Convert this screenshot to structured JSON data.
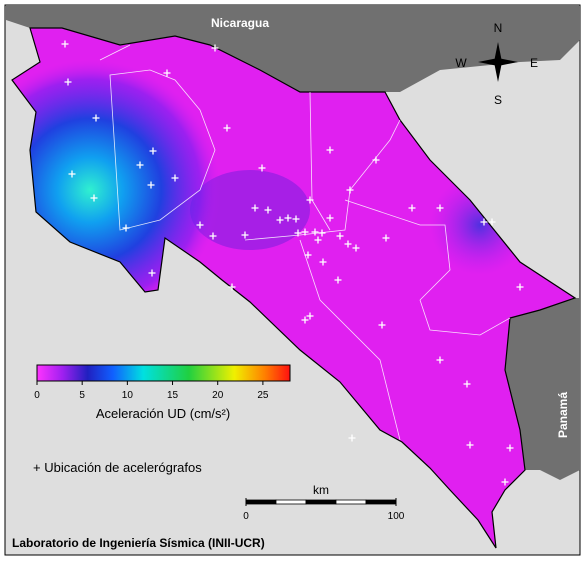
{
  "map": {
    "labels": {
      "north_country": "Nicaragua",
      "south_country": "Panamá"
    },
    "compass": {
      "n": "N",
      "s": "S",
      "e": "E",
      "w": "W"
    },
    "colorbar": {
      "label": "Aceleración UD (cm/s²)",
      "range": [
        0,
        28
      ],
      "ticks": [
        0,
        5,
        10,
        15,
        20,
        25
      ]
    },
    "legend": {
      "station": "+ Ubicación de acelerógrafos"
    },
    "scale": {
      "unit": "km",
      "ticks": [
        0,
        100
      ]
    },
    "footer": "Laboratorio de Ingeniería Sísmica (INII-UCR)"
  }
}
